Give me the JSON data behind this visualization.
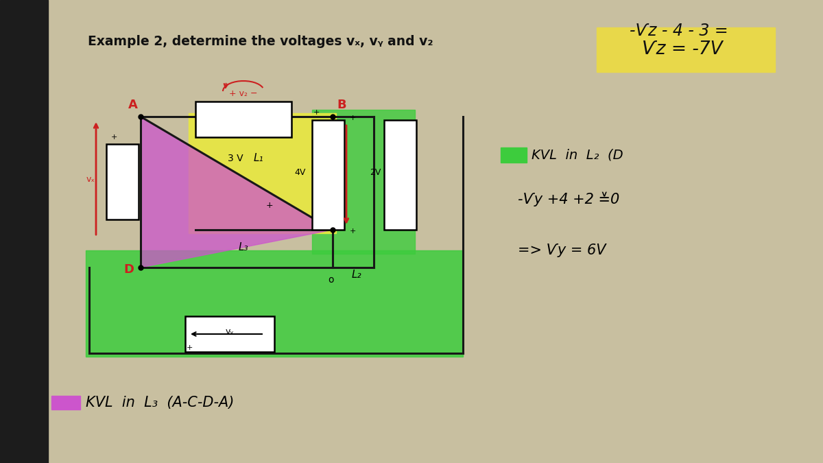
{
  "bg_color": "#c8bfa0",
  "bg_left_color": "#1c1c1c",
  "title": "Example 2, determine the voltages vₓ, vᵧ and v₂",
  "eq1": "-Ѵz - 4 - 3 =",
  "eq2_highlight": "#e8d84a",
  "eq2": "Ѵz = -7V",
  "kvl_l2": "KVL  in  L₂  (D",
  "kvl_l2_eq1": "-Ѵy +4 +2 ≚0",
  "kvl_l2_eq2": "=> Ѵy = 6V",
  "kvl_l3": "KVL  in  L₃  (A-C-D-A)",
  "green_loop": "#3dcc3d",
  "yellow_loop": "#e8e840",
  "pink_loop": "#cc55cc",
  "red_col": "#cc2020",
  "dark": "#181818"
}
